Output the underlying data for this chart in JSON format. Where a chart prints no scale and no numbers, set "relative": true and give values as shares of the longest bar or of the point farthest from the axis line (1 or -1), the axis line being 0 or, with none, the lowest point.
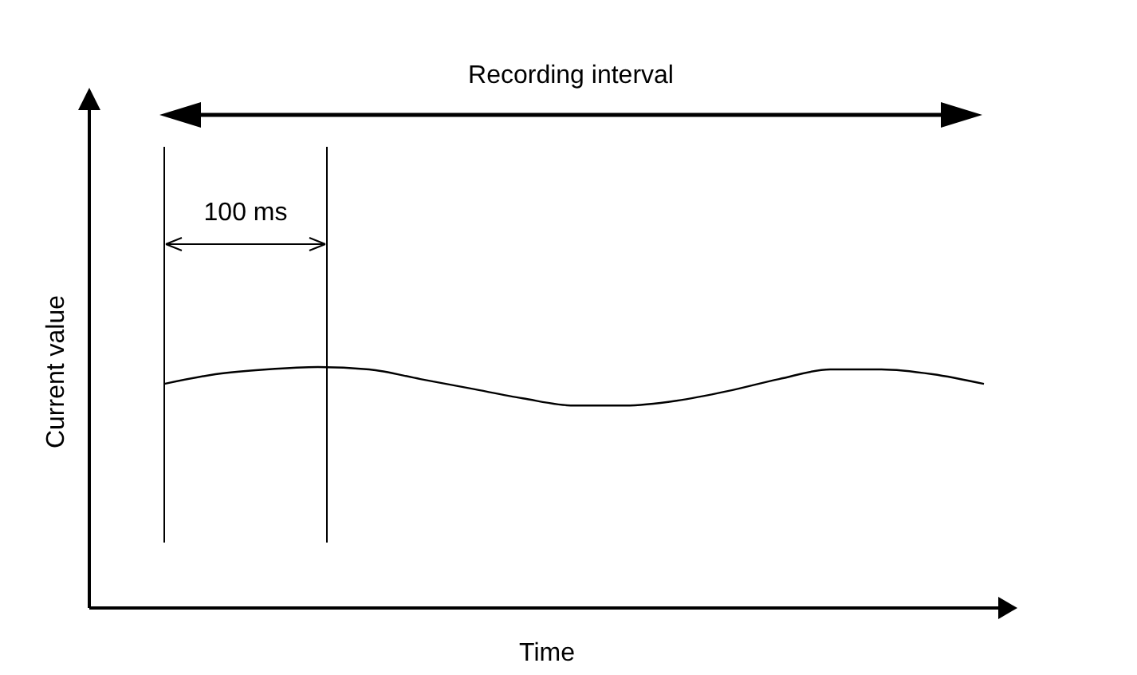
{
  "chart_data": {
    "type": "line",
    "relative": true,
    "xlabel": "Time",
    "ylabel": "Current value",
    "annotations": [
      "Recording interval",
      "100 ms"
    ],
    "categories": [
      null,
      null,
      null,
      null,
      null,
      null,
      null,
      null,
      null,
      null,
      null,
      null,
      null,
      null,
      null,
      null,
      null
    ],
    "series": [
      {
        "color": "#000000",
        "values": [
          0.93,
          0.97,
          0.99,
          1,
          0.99,
          0.95,
          0.91,
          0.87,
          0.84,
          0.84,
          0.86,
          0.9,
          0.95,
          0.99,
          0.99,
          0.97,
          0.93
        ]
      }
    ],
    "marker": "none",
    "line_style": "solid"
  }
}
